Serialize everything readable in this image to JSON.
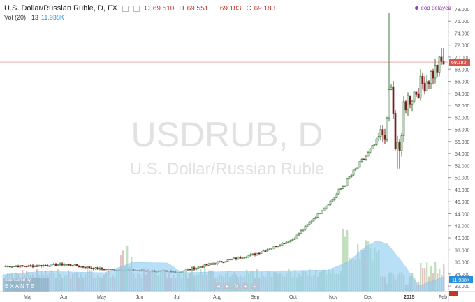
{
  "legend": {
    "symbol": "U.S. Dollar/Russian Ruble, D, FX",
    "o_label": "O",
    "o": "69.510",
    "h_label": "H",
    "h": "69.551",
    "l_label": "L",
    "l": "69.183",
    "c_label": "C",
    "c": "69.183"
  },
  "volume_legend": {
    "label": "Vol (20)",
    "value1": "13",
    "value2": "11.938K"
  },
  "eod_text": "eod delayed",
  "watermark": {
    "line1": "USDRUB, D",
    "line2": "U.S. Dollar/Russian Ruble"
  },
  "sponsor": {
    "label": "Sponsored by",
    "brand": "EXANTE"
  },
  "controls": [
    "◂",
    "▸",
    "↻",
    "+",
    "−"
  ],
  "colors": {
    "up": "#3d7a3d",
    "down": "#7a1e1e",
    "volume_up": "#b9d9b5",
    "volume_down": "#e3b7b7",
    "volume_ma": "#8ccaf2",
    "last_price": "#d9534f"
  },
  "chart_data": {
    "type": "candlestick",
    "x_tick_labels": [
      "Mar",
      "Apr",
      "May",
      "Jun",
      "Jul",
      "Aug",
      "Sep",
      "Oct",
      "Nov",
      "Dec",
      "2015",
      "Feb"
    ],
    "y_tick_labels": [
      "32.000",
      "34.000",
      "36.000",
      "38.000",
      "40.000",
      "42.000",
      "44.000",
      "46.000",
      "48.000",
      "50.000",
      "52.000",
      "54.000",
      "56.000",
      "58.000",
      "60.000",
      "62.000",
      "64.000",
      "66.000",
      "68.000",
      "70.000",
      "72.000",
      "74.000",
      "76.000",
      "78.000"
    ],
    "ylim": [
      31.2,
      78.8
    ],
    "last_price": "69.183",
    "volume_value": "11.938K",
    "series": [
      {
        "date": "Mar",
        "close": 35.3
      },
      {
        "date": "Apr",
        "close": 35.6
      },
      {
        "date": "May",
        "close": 34.8
      },
      {
        "date": "Jun",
        "close": 34.6
      },
      {
        "date": "Jul",
        "close": 34.3
      },
      {
        "date": "Aug",
        "close": 35.9
      },
      {
        "date": "Sep",
        "close": 37.3
      },
      {
        "date": "Oct",
        "close": 39.8
      },
      {
        "date": "Nov",
        "close": 46.5
      },
      {
        "date": "Dec",
        "close": 54.0
      },
      {
        "date": "2015",
        "close": 63.0
      },
      {
        "date": "Feb",
        "close": 69.2
      }
    ]
  }
}
